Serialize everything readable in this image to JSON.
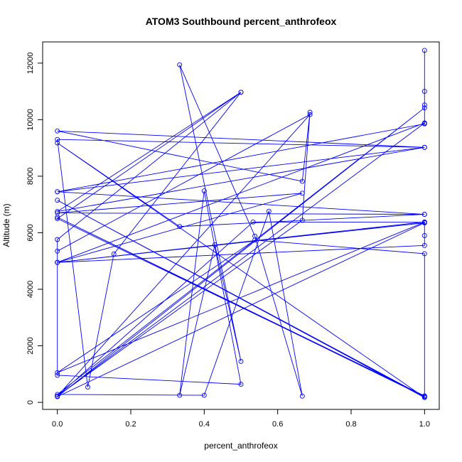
{
  "chart_data": {
    "type": "line",
    "title": "ATOM3 Southbound percent_anthrofeox",
    "xlabel": "percent_anthrofeox",
    "ylabel": "Altitude (m)",
    "xlim": [
      -0.04,
      1.04
    ],
    "ylim": [
      -250,
      12750
    ],
    "xticks": [
      0.0,
      0.2,
      0.4,
      0.6,
      0.8,
      1.0
    ],
    "xtick_labels": [
      "0.0",
      "0.2",
      "0.4",
      "0.6",
      "0.8",
      "1.0"
    ],
    "yticks": [
      0,
      2000,
      4000,
      6000,
      8000,
      10000,
      12000
    ],
    "ytick_labels": [
      "0",
      "2000",
      "4000",
      "6000",
      "8000",
      "10000",
      "12000"
    ],
    "grid": false,
    "legend": "none",
    "marker": "open-circle",
    "series": [
      {
        "color": "#0000ff",
        "points": [
          [
            1.0,
            12450
          ],
          [
            1.0,
            11000
          ],
          [
            1.0,
            10520
          ],
          [
            1.0,
            9880
          ],
          [
            1.0,
            9850
          ],
          [
            0.0,
            7450
          ],
          [
            1.0,
            9020
          ],
          [
            0.0,
            6750
          ],
          [
            0.5,
            10970
          ],
          [
            0.0,
            6500
          ],
          [
            1.0,
            230
          ],
          [
            0.0,
            6550
          ],
          [
            1.0,
            200
          ],
          [
            0.0,
            7150
          ],
          [
            1.0,
            170
          ],
          [
            0.0,
            9180
          ],
          [
            0.333,
            6220
          ],
          [
            1.0,
            6650
          ],
          [
            0.0,
            7450
          ],
          [
            1.0,
            6650
          ],
          [
            0.0,
            6700
          ],
          [
            0.667,
            7400
          ],
          [
            0.0,
            4950
          ],
          [
            1.0,
            5550
          ],
          [
            1.0,
            5900
          ],
          [
            1.0,
            6380
          ],
          [
            0.0,
            4950
          ],
          [
            1.0,
            6350
          ],
          [
            0.0,
            200
          ],
          [
            1.0,
            10420
          ],
          [
            0.0,
            280
          ],
          [
            0.4,
            250
          ],
          [
            0.576,
            6760
          ],
          [
            0.667,
            220
          ],
          [
            0.538,
            5880
          ],
          [
            0.333,
            11940
          ],
          [
            0.5,
            1450
          ],
          [
            0.429,
            5570
          ],
          [
            0.333,
            250
          ],
          [
            0.4,
            7480
          ],
          [
            0.5,
            640
          ],
          [
            0.0,
            960
          ],
          [
            0.0,
            5760
          ],
          [
            0.5,
            10970
          ],
          [
            0.154,
            5250
          ],
          [
            0.083,
            540
          ],
          [
            0.0,
            9300
          ],
          [
            1.0,
            9020
          ],
          [
            0.0,
            9600
          ],
          [
            0.667,
            7820
          ],
          [
            0.688,
            10260
          ],
          [
            0.667,
            6440
          ],
          [
            0.0,
            220
          ],
          [
            0.688,
            10180
          ],
          [
            0.0,
            5350
          ],
          [
            0.0,
            4950
          ],
          [
            1.0,
            9880
          ],
          [
            0.0,
            220
          ],
          [
            0.533,
            6380
          ],
          [
            1.0,
            6370
          ],
          [
            0.0,
            1050
          ],
          [
            0.538,
            5740
          ],
          [
            1.0,
            5260
          ],
          [
            1.0,
            200
          ]
        ]
      }
    ]
  }
}
